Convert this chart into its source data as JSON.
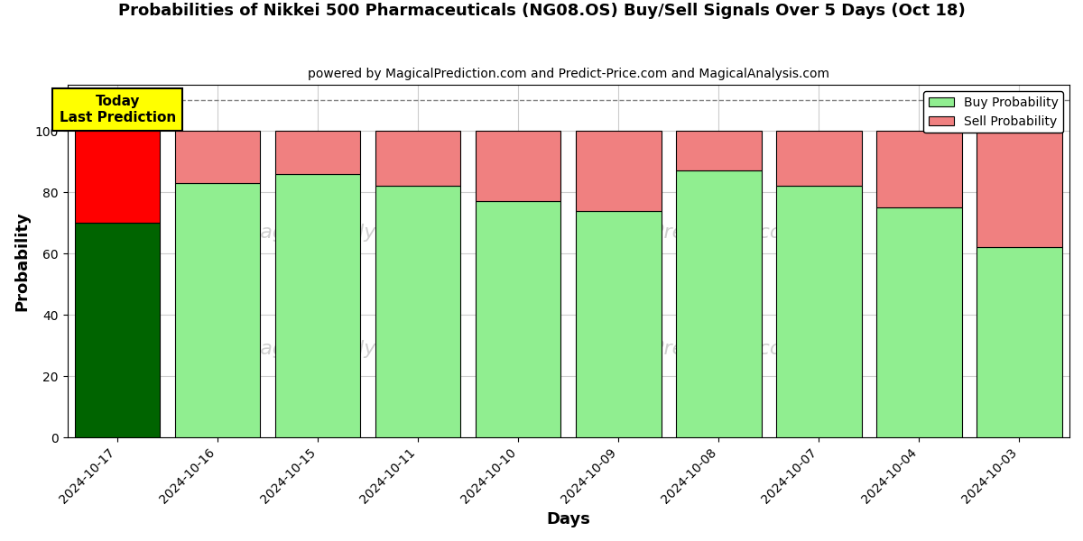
{
  "title": "Probabilities of Nikkei 500 Pharmaceuticals (NG08.OS) Buy/Sell Signals Over 5 Days (Oct 18)",
  "subtitle": "powered by MagicalPrediction.com and Predict-Price.com and MagicalAnalysis.com",
  "xlabel": "Days",
  "ylabel": "Probability",
  "dates": [
    "2024-10-17",
    "2024-10-16",
    "2024-10-15",
    "2024-10-11",
    "2024-10-10",
    "2024-10-09",
    "2024-10-08",
    "2024-10-07",
    "2024-10-04",
    "2024-10-03"
  ],
  "buy_probs": [
    70,
    83,
    86,
    82,
    77,
    74,
    87,
    82,
    75,
    62
  ],
  "sell_probs": [
    30,
    17,
    14,
    18,
    23,
    26,
    13,
    18,
    25,
    38
  ],
  "today_buy_color": "#006400",
  "today_sell_color": "#FF0000",
  "buy_color": "#90EE90",
  "sell_color": "#F08080",
  "today_annotation_bg": "#FFFF00",
  "today_annotation_text": "Today\nLast Prediction",
  "ylim": [
    0,
    115
  ],
  "yticks": [
    0,
    20,
    40,
    60,
    80,
    100
  ],
  "dashed_line_y": 110,
  "legend_buy_label": "Buy Probability",
  "legend_sell_label": "Sell Probability",
  "bar_width": 0.85,
  "background_color": "#ffffff",
  "grid_color": "#cccccc"
}
